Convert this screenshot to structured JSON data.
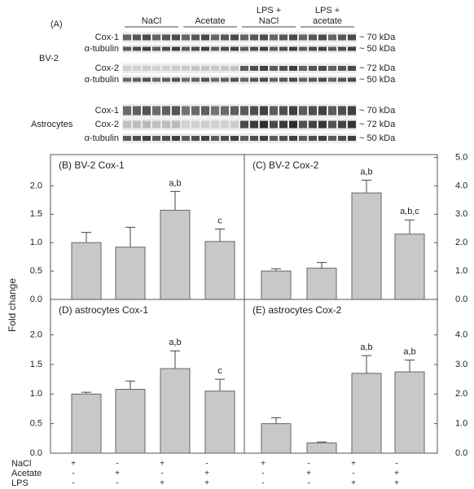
{
  "panel_a": {
    "label": "(A)",
    "groups": [
      [
        "NaCl"
      ],
      [
        "Acetate"
      ],
      [
        "LPS +",
        "NaCl"
      ],
      [
        "LPS +",
        "acetate"
      ]
    ],
    "rows": [
      {
        "label": "Cox-1",
        "size": "~ 70 kDa"
      },
      {
        "label": "α-tubulin",
        "size": "~ 50 kDa"
      },
      {
        "label": "Cox-2",
        "size": "~ 72 kDa"
      },
      {
        "label": "α-tubulin",
        "size": "~ 50 kDa"
      },
      {
        "label": "Cox-1",
        "size": "~ 70 kDa"
      },
      {
        "label": "Cox-2",
        "size": "~ 72 kDa"
      },
      {
        "label": "α-tubulin",
        "size": "~ 50 kDa"
      }
    ],
    "cells": [
      "BV-2",
      "Astrocytes"
    ]
  },
  "y_label": "Fold change",
  "treatments": [
    {
      "name": "NaCl",
      "signs": [
        "+",
        "-",
        "+",
        "-"
      ]
    },
    {
      "name": "Acetate",
      "signs": [
        "-",
        "+",
        "-",
        "+"
      ]
    },
    {
      "name": "LPS",
      "signs": [
        "-",
        "-",
        "+",
        "+"
      ]
    }
  ],
  "chart_data": [
    {
      "type": "bar",
      "title": "(B) BV-2 Cox-1",
      "axis_side": "left",
      "color": "#c8c8c8",
      "values": [
        1.0,
        0.92,
        1.57,
        1.02
      ],
      "errors": [
        0.18,
        0.35,
        0.33,
        0.22
      ],
      "value_labels": [
        null,
        null,
        "a,b",
        "c"
      ],
      "ylim": [
        0,
        2.55
      ],
      "yticks": [
        {
          "value": 0,
          "label": "0.0"
        },
        {
          "value": 0.5,
          "label": "0.5"
        },
        {
          "value": 1,
          "label": "1.0"
        },
        {
          "value": 1.5,
          "label": "1.5"
        },
        {
          "value": 2,
          "label": "2.0"
        }
      ]
    },
    {
      "type": "bar",
      "title": "(C) BV-2 Cox-2",
      "axis_side": "right",
      "color": "#c8c8c8",
      "values": [
        1.0,
        1.1,
        3.75,
        2.3
      ],
      "errors": [
        0.08,
        0.2,
        0.45,
        0.5
      ],
      "value_labels": [
        null,
        null,
        "a,b",
        "a,b,c"
      ],
      "ylim": [
        0,
        5.1
      ],
      "yticks": [
        {
          "value": 0,
          "label": "0.0"
        },
        {
          "value": 1,
          "label": "1.0"
        },
        {
          "value": 2,
          "label": "2.0"
        },
        {
          "value": 3,
          "label": "3.0"
        },
        {
          "value": 4,
          "label": "4.0"
        },
        {
          "value": 5,
          "label": "5.0"
        }
      ]
    },
    {
      "type": "bar",
      "title": "(D) astrocytes Cox-1",
      "axis_side": "left",
      "color": "#c8c8c8",
      "values": [
        1.0,
        1.08,
        1.43,
        1.05
      ],
      "errors": [
        0.03,
        0.14,
        0.3,
        0.2
      ],
      "value_labels": [
        null,
        null,
        "a,b",
        "c"
      ],
      "ylim": [
        0,
        2.6
      ],
      "yticks": [
        {
          "value": 0,
          "label": "0.0"
        },
        {
          "value": 0.5,
          "label": "0.5"
        },
        {
          "value": 1,
          "label": "1.0"
        },
        {
          "value": 1.5,
          "label": "1.5"
        },
        {
          "value": 2,
          "label": "2.0"
        }
      ]
    },
    {
      "type": "bar",
      "title": "(E) astrocytes Cox-2",
      "axis_side": "right",
      "color": "#c8c8c8",
      "values": [
        1.0,
        0.35,
        2.7,
        2.75
      ],
      "errors": [
        0.2,
        0.03,
        0.6,
        0.4
      ],
      "value_labels": [
        null,
        null,
        "a,b",
        "a,b"
      ],
      "ylim": [
        0,
        5.2
      ],
      "yticks": [
        {
          "value": 0,
          "label": "0.0"
        },
        {
          "value": 1,
          "label": "1.0"
        },
        {
          "value": 2,
          "label": "2.0"
        },
        {
          "value": 3,
          "label": "3.0"
        },
        {
          "value": 4,
          "label": "4.0"
        }
      ]
    }
  ]
}
